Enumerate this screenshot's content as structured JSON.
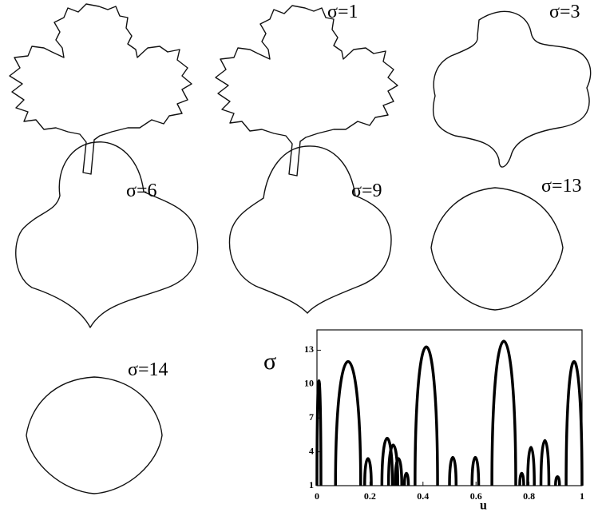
{
  "figure": {
    "shape_labels": [
      "σ=1",
      "σ=3",
      "σ=6",
      "σ=9",
      "σ=13",
      "σ=14"
    ]
  },
  "chart_data": {
    "type": "css",
    "xlabel": "u",
    "ylabel": "σ",
    "xlim": [
      0,
      1
    ],
    "ylim": [
      1,
      14.8
    ],
    "xticks": [
      0,
      0.2,
      0.4,
      0.6,
      0.8,
      1
    ],
    "yticks": [
      1,
      4,
      7,
      10,
      13
    ],
    "contours": [
      {
        "start": 0,
        "end": 0.015,
        "peak": 10.3
      },
      {
        "start": 0.07,
        "end": 0.165,
        "peak": 12
      },
      {
        "start": 0.18,
        "end": 0.205,
        "peak": 3.4
      },
      {
        "start": 0.245,
        "end": 0.285,
        "peak": 5.2
      },
      {
        "start": 0.27,
        "end": 0.305,
        "peak": 4.6
      },
      {
        "start": 0.295,
        "end": 0.32,
        "peak": 3.4
      },
      {
        "start": 0.33,
        "end": 0.345,
        "peak": 2.1
      },
      {
        "start": 0.37,
        "end": 0.455,
        "peak": 13.3
      },
      {
        "start": 0.5,
        "end": 0.525,
        "peak": 3.5
      },
      {
        "start": 0.585,
        "end": 0.61,
        "peak": 3.5
      },
      {
        "start": 0.66,
        "end": 0.75,
        "peak": 13.8
      },
      {
        "start": 0.765,
        "end": 0.78,
        "peak": 2.1
      },
      {
        "start": 0.795,
        "end": 0.82,
        "peak": 4.4
      },
      {
        "start": 0.845,
        "end": 0.875,
        "peak": 5
      },
      {
        "start": 0.9,
        "end": 0.915,
        "peak": 1.8
      },
      {
        "start": 0.94,
        "end": 1,
        "peak": 12
      }
    ]
  }
}
